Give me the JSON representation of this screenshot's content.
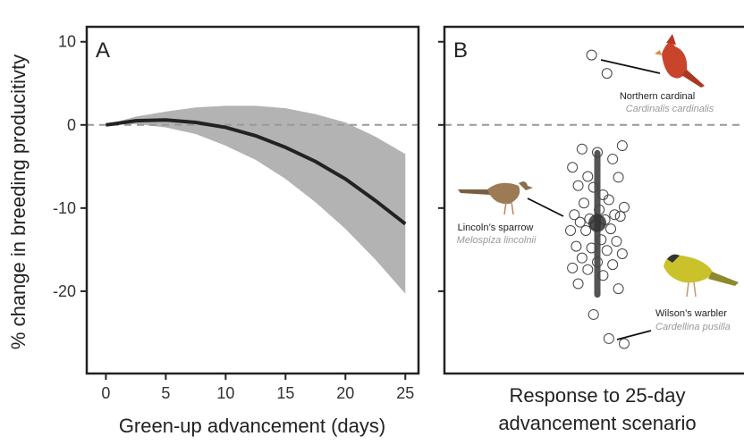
{
  "chart_data": [
    {
      "type": "line",
      "panel": "A",
      "ylabel": "% change in breeding producitivty",
      "xlabel": "Green-up advancement (days)",
      "x": [
        0,
        2.5,
        5,
        7.5,
        10,
        12.5,
        15,
        17.5,
        20,
        22.5,
        25
      ],
      "line": {
        "color": "#222222",
        "values": [
          0,
          0.5,
          0.6,
          0.3,
          -0.3,
          -1.3,
          -2.7,
          -4.4,
          -6.5,
          -9.1,
          -11.9
        ]
      },
      "band": {
        "color": "#b3b3b3",
        "upper": [
          0,
          1.0,
          1.6,
          2.1,
          2.3,
          2.3,
          2.0,
          1.3,
          0.3,
          -1.4,
          -3.5
        ],
        "lower": [
          0,
          0.1,
          -0.3,
          -1.1,
          -2.5,
          -4.2,
          -6.5,
          -9.3,
          -12.5,
          -16.2,
          -20.3
        ]
      },
      "hline": 0,
      "xlim": [
        -1.6,
        26.1
      ],
      "xticks": [
        0,
        5,
        10,
        15,
        20,
        25
      ],
      "ylim": [
        -29.9,
        11.8
      ],
      "yticks": [
        10,
        0,
        -10,
        -20
      ]
    },
    {
      "type": "strip",
      "panel": "B",
      "xlabel": [
        "Response to 25-day",
        "advancement scenario"
      ],
      "points": [
        8.4,
        6.2,
        -2.5,
        -2.9,
        -3.3,
        -4.1,
        -5.1,
        -6.2,
        -8.4,
        -6.3,
        -7.3,
        -7.5,
        -9.0,
        -9.9,
        -9.4,
        -10.2,
        -10.8,
        -10.8,
        -11.3,
        -11.4,
        -11.0,
        -11.7,
        -12.0,
        -12.5,
        -12.7,
        -12.7,
        -13.8,
        -14.0,
        -14.6,
        -14.8,
        -15.1,
        -15.5,
        -16.0,
        -16.5,
        -16.8,
        -17.2,
        -17.4,
        -18.1,
        -19.7,
        -19.1,
        -22.8,
        -25.7,
        -26.3
      ],
      "mean": -11.8,
      "interval": [
        -3.4,
        -20.4
      ],
      "color": "#333333",
      "hline": 0,
      "ylim": [
        -29.9,
        11.8
      ],
      "yticks": [
        10,
        0,
        -10,
        -20
      ],
      "annotations": [
        {
          "name": "Northern cardinal",
          "species": "Cardinalis cardinalis"
        },
        {
          "name": "Lincoln’s sparrow",
          "species": "Melospiza lincolnii"
        },
        {
          "name": "Wilson’s warbler",
          "species": "Cardellina pusilla"
        }
      ]
    }
  ]
}
